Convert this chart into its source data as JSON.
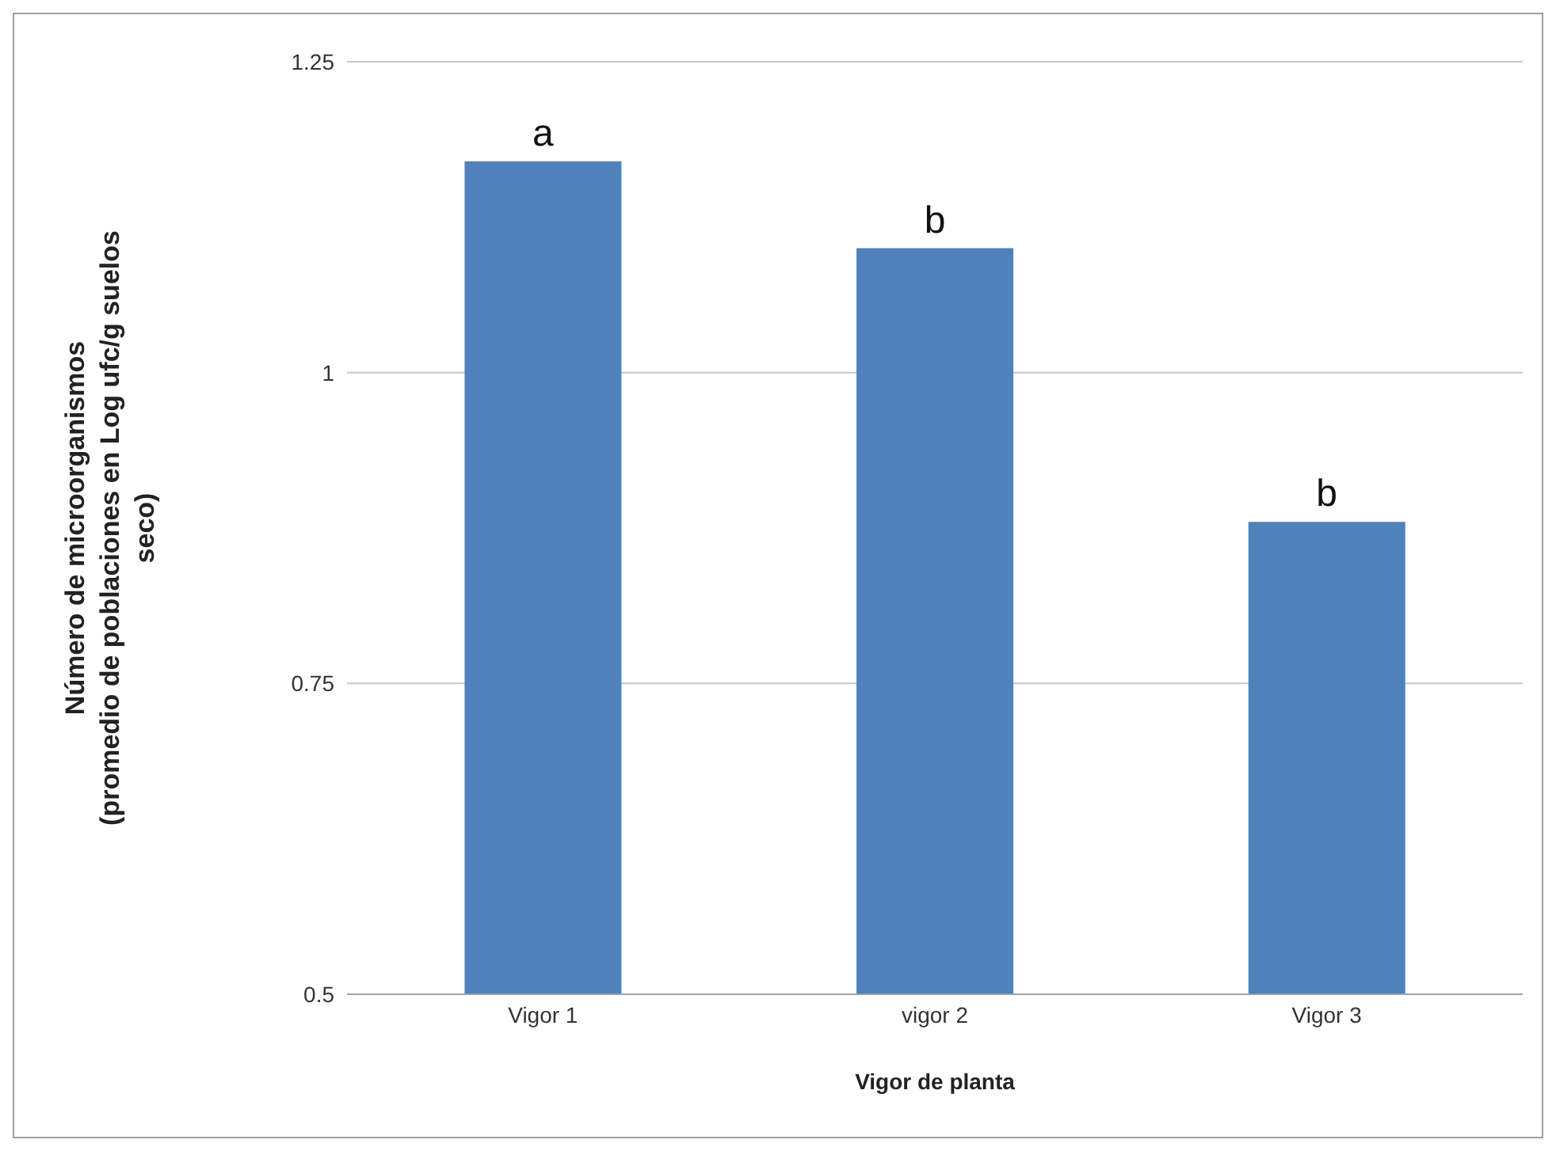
{
  "chart_data": {
    "type": "bar",
    "xlabel": "Vigor de planta",
    "ylabel": "Número de microorganismos\n(promedio de poblaciones  en Log ufc/g suelos\nseco)",
    "categories": [
      "Vigor 1",
      "vigor 2",
      "Vigor 3"
    ],
    "values": [
      1.17,
      1.1,
      0.88
    ],
    "color": "#4f81bd",
    "ylim": [
      0.5,
      1.25
    ],
    "yticks": [
      0.5,
      0.75,
      1,
      1.25
    ],
    "grid": "y",
    "annotations": [
      {
        "text": "a",
        "x": "Vigor 1",
        "y": 1.17
      },
      {
        "text": "b",
        "x": "vigor 2",
        "y": 1.1
      },
      {
        "text": "b",
        "x": "Vigor 3",
        "y": 0.88
      }
    ]
  }
}
